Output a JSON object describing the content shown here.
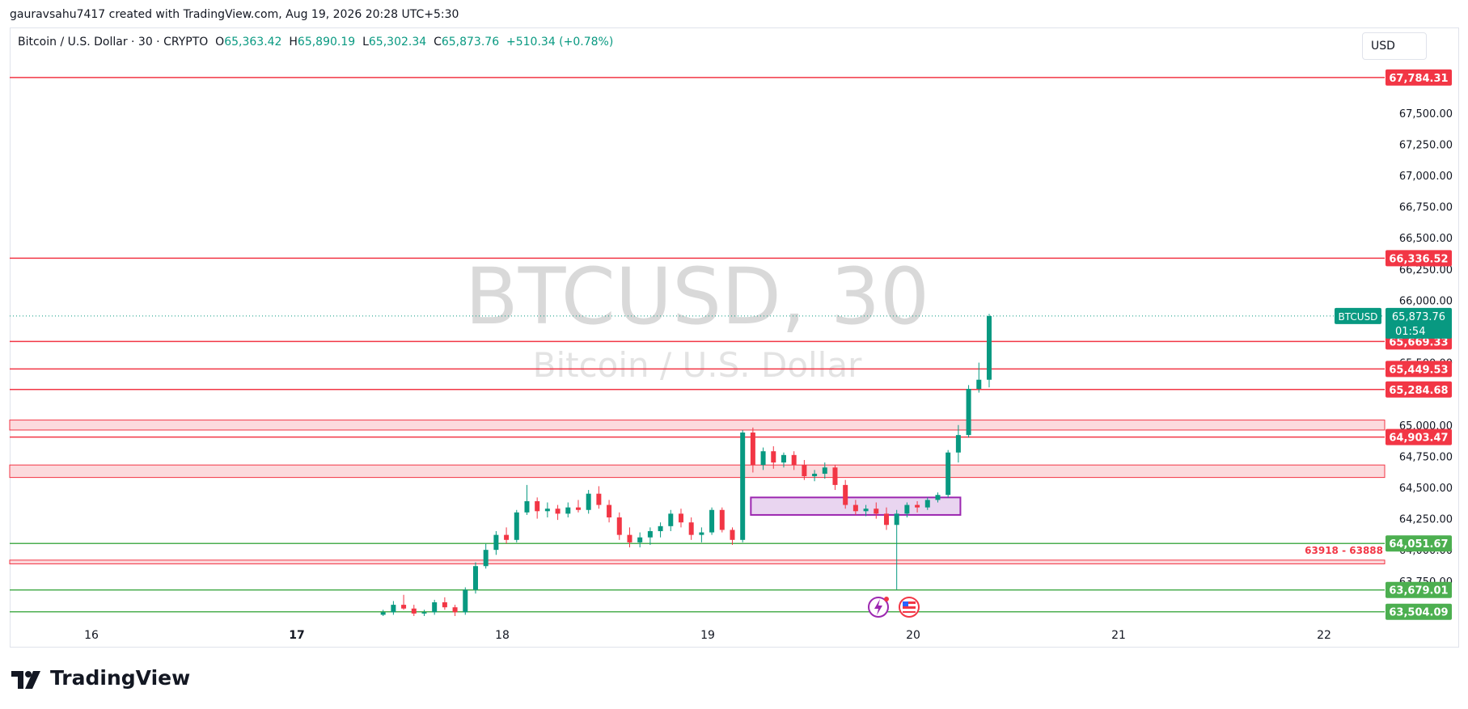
{
  "header": {
    "attribution": "gauravsahu7417 created with TradingView.com, Aug 19, 2026 20:28 UTC+5:30"
  },
  "legend": {
    "symbol": "Bitcoin / U.S. Dollar · 30 · CRYPTO",
    "o_label": "O",
    "o_value": "65,363.42",
    "h_label": "H",
    "h_value": "65,890.19",
    "l_label": "L",
    "l_value": "65,302.34",
    "c_label": "C",
    "c_value": "65,873.76",
    "change": "+510.34 (+0.78%)"
  },
  "currency": "USD",
  "watermark": {
    "line1": "BTCUSD, 30",
    "line2": "Bitcoin / U.S. Dollar"
  },
  "brand": {
    "name": "TradingView"
  },
  "colors": {
    "up": "#089981",
    "down": "#f23645",
    "level_red": "#f23645",
    "level_green": "#4caf50",
    "zone_fill": "#fcdadd",
    "box_border": "#9c27b0",
    "box_fill": "#e9d5f0"
  },
  "chart_data": {
    "type": "candlestick",
    "symbol": "BTCUSD",
    "interval": "30",
    "x_ticks": [
      "16",
      "17",
      "18",
      "19",
      "20",
      "21",
      "22"
    ],
    "y_ticks": [
      "67,500.00",
      "67,250.00",
      "67,000.00",
      "66,750.00",
      "66,500.00",
      "66,250.00",
      "66,000.00",
      "65,500.00",
      "65,000.00",
      "64,750.00",
      "64,500.00",
      "64,250.00",
      "64,000.00",
      "63,750.00"
    ],
    "ylim": [
      63470,
      67900
    ],
    "last_price": {
      "label": "BTCUSD",
      "value": "65,873.76",
      "countdown": "01:54",
      "price": 65873.76
    },
    "levels": [
      {
        "label": "67,784.31",
        "price": 67784.31,
        "color": "red"
      },
      {
        "label": "66,336.52",
        "price": 66336.52,
        "color": "red"
      },
      {
        "label": "65,669.33",
        "price": 65669.33,
        "color": "red"
      },
      {
        "label": "65,449.53",
        "price": 65449.53,
        "color": "red"
      },
      {
        "label": "65,284.68",
        "price": 65284.68,
        "color": "red"
      },
      {
        "label": "64,903.47",
        "price": 64903.47,
        "color": "red"
      },
      {
        "label": "64,051.67",
        "price": 64051.67,
        "color": "green"
      },
      {
        "label": "63,679.01",
        "price": 63679.01,
        "color": "green"
      },
      {
        "label": "63,504.09",
        "price": 63504.09,
        "color": "green"
      }
    ],
    "zones": [
      {
        "low": 64960,
        "high": 65040
      },
      {
        "low": 64580,
        "high": 64680
      },
      {
        "low": 63888,
        "high": 63918,
        "label": "63918 - 63888"
      }
    ],
    "box": {
      "x_start": 19.21,
      "x_end": 20.23,
      "low": 64280,
      "high": 64420
    },
    "candles": [
      {
        "t": 17.42,
        "o": 63480,
        "h": 63520,
        "l": 63470,
        "c": 63500
      },
      {
        "t": 17.47,
        "o": 63500,
        "h": 63590,
        "l": 63480,
        "c": 63560
      },
      {
        "t": 17.52,
        "o": 63560,
        "h": 63640,
        "l": 63520,
        "c": 63530
      },
      {
        "t": 17.57,
        "o": 63530,
        "h": 63560,
        "l": 63470,
        "c": 63490
      },
      {
        "t": 17.62,
        "o": 63490,
        "h": 63520,
        "l": 63470,
        "c": 63500
      },
      {
        "t": 17.67,
        "o": 63500,
        "h": 63600,
        "l": 63480,
        "c": 63580
      },
      {
        "t": 17.72,
        "o": 63580,
        "h": 63620,
        "l": 63520,
        "c": 63540
      },
      {
        "t": 17.77,
        "o": 63540,
        "h": 63560,
        "l": 63470,
        "c": 63500
      },
      {
        "t": 17.82,
        "o": 63500,
        "h": 63700,
        "l": 63480,
        "c": 63680
      },
      {
        "t": 17.87,
        "o": 63680,
        "h": 63900,
        "l": 63650,
        "c": 63870
      },
      {
        "t": 17.92,
        "o": 63870,
        "h": 64050,
        "l": 63850,
        "c": 64000
      },
      {
        "t": 17.97,
        "o": 64000,
        "h": 64150,
        "l": 63960,
        "c": 64120
      },
      {
        "t": 18.02,
        "o": 64120,
        "h": 64180,
        "l": 64050,
        "c": 64080
      },
      {
        "t": 18.07,
        "o": 64080,
        "h": 64320,
        "l": 64060,
        "c": 64300
      },
      {
        "t": 18.12,
        "o": 64300,
        "h": 64520,
        "l": 64280,
        "c": 64390
      },
      {
        "t": 18.17,
        "o": 64390,
        "h": 64420,
        "l": 64250,
        "c": 64310
      },
      {
        "t": 18.22,
        "o": 64310,
        "h": 64380,
        "l": 64260,
        "c": 64330
      },
      {
        "t": 18.27,
        "o": 64330,
        "h": 64360,
        "l": 64240,
        "c": 64290
      },
      {
        "t": 18.32,
        "o": 64290,
        "h": 64380,
        "l": 64260,
        "c": 64340
      },
      {
        "t": 18.37,
        "o": 64340,
        "h": 64400,
        "l": 64300,
        "c": 64320
      },
      {
        "t": 18.42,
        "o": 64320,
        "h": 64480,
        "l": 64290,
        "c": 64450
      },
      {
        "t": 18.47,
        "o": 64450,
        "h": 64510,
        "l": 64330,
        "c": 64360
      },
      {
        "t": 18.52,
        "o": 64360,
        "h": 64400,
        "l": 64220,
        "c": 64260
      },
      {
        "t": 18.57,
        "o": 64260,
        "h": 64300,
        "l": 64080,
        "c": 64120
      },
      {
        "t": 18.62,
        "o": 64120,
        "h": 64180,
        "l": 64020,
        "c": 64060
      },
      {
        "t": 18.67,
        "o": 64060,
        "h": 64140,
        "l": 64020,
        "c": 64100
      },
      {
        "t": 18.72,
        "o": 64100,
        "h": 64180,
        "l": 64040,
        "c": 64150
      },
      {
        "t": 18.77,
        "o": 64150,
        "h": 64220,
        "l": 64100,
        "c": 64190
      },
      {
        "t": 18.82,
        "o": 64190,
        "h": 64320,
        "l": 64150,
        "c": 64290
      },
      {
        "t": 18.87,
        "o": 64290,
        "h": 64330,
        "l": 64180,
        "c": 64220
      },
      {
        "t": 18.92,
        "o": 64220,
        "h": 64260,
        "l": 64080,
        "c": 64120
      },
      {
        "t": 18.97,
        "o": 64120,
        "h": 64180,
        "l": 64060,
        "c": 64140
      },
      {
        "t": 19.02,
        "o": 64140,
        "h": 64340,
        "l": 64120,
        "c": 64320
      },
      {
        "t": 19.07,
        "o": 64320,
        "h": 64340,
        "l": 64140,
        "c": 64160
      },
      {
        "t": 19.12,
        "o": 64160,
        "h": 64180,
        "l": 64040,
        "c": 64080
      },
      {
        "t": 19.17,
        "o": 64080,
        "h": 64960,
        "l": 64060,
        "c": 64940
      },
      {
        "t": 19.22,
        "o": 64940,
        "h": 64980,
        "l": 64620,
        "c": 64680
      },
      {
        "t": 19.27,
        "o": 64680,
        "h": 64820,
        "l": 64640,
        "c": 64790
      },
      {
        "t": 19.32,
        "o": 64790,
        "h": 64830,
        "l": 64650,
        "c": 64700
      },
      {
        "t": 19.37,
        "o": 64700,
        "h": 64780,
        "l": 64660,
        "c": 64760
      },
      {
        "t": 19.42,
        "o": 64760,
        "h": 64790,
        "l": 64640,
        "c": 64680
      },
      {
        "t": 19.47,
        "o": 64680,
        "h": 64720,
        "l": 64560,
        "c": 64590
      },
      {
        "t": 19.52,
        "o": 64590,
        "h": 64640,
        "l": 64550,
        "c": 64610
      },
      {
        "t": 19.57,
        "o": 64610,
        "h": 64700,
        "l": 64570,
        "c": 64660
      },
      {
        "t": 19.62,
        "o": 64660,
        "h": 64680,
        "l": 64480,
        "c": 64520
      },
      {
        "t": 19.67,
        "o": 64520,
        "h": 64560,
        "l": 64330,
        "c": 64360
      },
      {
        "t": 19.72,
        "o": 64360,
        "h": 64400,
        "l": 64280,
        "c": 64310
      },
      {
        "t": 19.77,
        "o": 64310,
        "h": 64360,
        "l": 64270,
        "c": 64330
      },
      {
        "t": 19.82,
        "o": 64330,
        "h": 64380,
        "l": 64250,
        "c": 64290
      },
      {
        "t": 19.87,
        "o": 64290,
        "h": 64340,
        "l": 64160,
        "c": 64200
      },
      {
        "t": 19.92,
        "o": 64200,
        "h": 64320,
        "l": 63680,
        "c": 64290
      },
      {
        "t": 19.97,
        "o": 64290,
        "h": 64380,
        "l": 64260,
        "c": 64360
      },
      {
        "t": 20.02,
        "o": 64360,
        "h": 64390,
        "l": 64300,
        "c": 64340
      },
      {
        "t": 20.07,
        "o": 64340,
        "h": 64420,
        "l": 64320,
        "c": 64400
      },
      {
        "t": 20.12,
        "o": 64400,
        "h": 64460,
        "l": 64380,
        "c": 64440
      },
      {
        "t": 20.17,
        "o": 64440,
        "h": 64800,
        "l": 64420,
        "c": 64780
      },
      {
        "t": 20.22,
        "o": 64780,
        "h": 65000,
        "l": 64700,
        "c": 64920
      },
      {
        "t": 20.27,
        "o": 64920,
        "h": 65320,
        "l": 64900,
        "c": 65290
      },
      {
        "t": 20.32,
        "o": 65290,
        "h": 65500,
        "l": 65260,
        "c": 65363
      },
      {
        "t": 20.37,
        "o": 65363,
        "h": 65890,
        "l": 65302,
        "c": 65873
      }
    ]
  }
}
